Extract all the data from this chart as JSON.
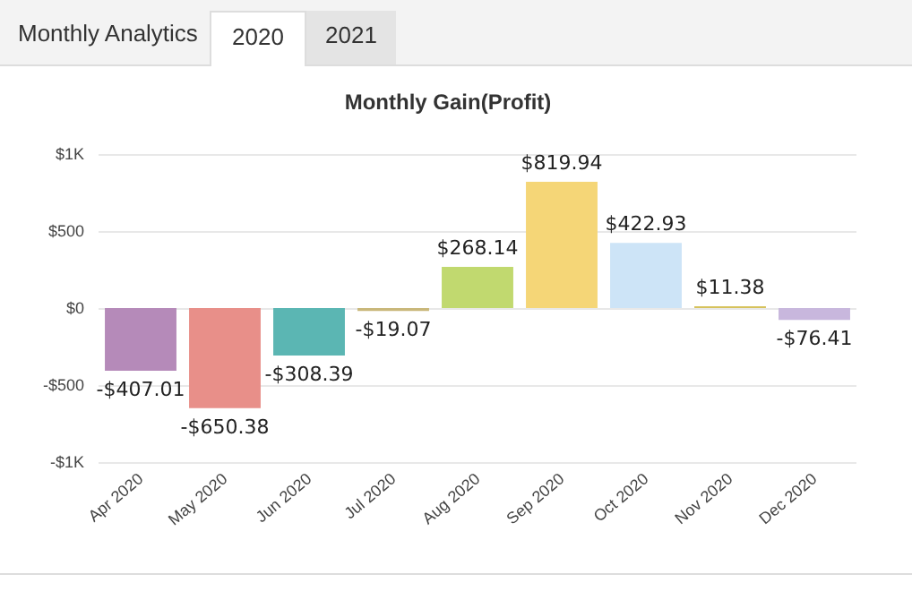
{
  "chart_data": {
    "type": "bar",
    "title": "Monthly Gain(Profit)",
    "annotations": [
      "Monthly Analytics",
      "2020",
      "2021"
    ],
    "categories": [
      "Apr 2020",
      "May 2020",
      "Jun 2020",
      "Jul 2020",
      "Aug 2020",
      "Sep 2020",
      "Oct 2020",
      "Nov 2020",
      "Dec 2020"
    ],
    "values": [
      -407.01,
      -650.38,
      -308.39,
      -19.07,
      268.14,
      819.94,
      422.93,
      11.38,
      -76.41
    ],
    "colors": [
      "#b58ab9",
      "#e88f89",
      "#5bb6b3",
      "#c9b77a",
      "#c1d96f",
      "#f5d677",
      "#cde4f7",
      "#d6c25c",
      "#c8b7dd"
    ],
    "value_labels": [
      "-$407.01",
      "-$650.38",
      "-$308.39",
      "-$19.07",
      "$268.14",
      "$819.94",
      "$422.93",
      "$11.38",
      "-$76.41"
    ],
    "ylim": [
      -1000,
      1000
    ],
    "yticks": [
      {
        "value": -1000,
        "label": "-$1K"
      },
      {
        "value": -500,
        "label": "-$500"
      },
      {
        "value": 0,
        "label": "$0"
      },
      {
        "value": 500,
        "label": "$500"
      },
      {
        "value": 1000,
        "label": "$1K"
      }
    ],
    "grid": "y"
  }
}
